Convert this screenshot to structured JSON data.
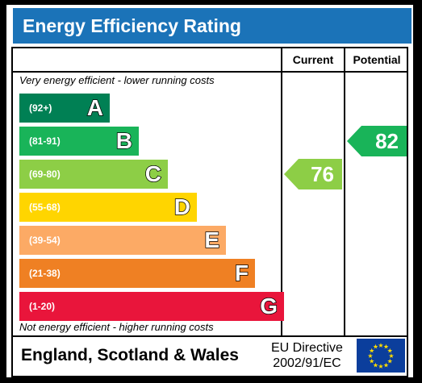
{
  "title": "Energy Efficiency Rating",
  "headers": {
    "current": "Current",
    "potential": "Potential"
  },
  "notes": {
    "top": "Very energy efficient - lower running costs",
    "bottom": "Not energy efficient - higher running costs"
  },
  "bands": [
    {
      "range": "(92+)",
      "letter": "A",
      "color": "#008054"
    },
    {
      "range": "(81-91)",
      "letter": "B",
      "color": "#19b459"
    },
    {
      "range": "(69-80)",
      "letter": "C",
      "color": "#8dce46"
    },
    {
      "range": "(55-68)",
      "letter": "D",
      "color": "#ffd500"
    },
    {
      "range": "(39-54)",
      "letter": "E",
      "color": "#fcaa65"
    },
    {
      "range": "(21-38)",
      "letter": "F",
      "color": "#ef8023"
    },
    {
      "range": "(1-20)",
      "letter": "G",
      "color": "#e9153b"
    }
  ],
  "current": {
    "value": "76",
    "band": "C",
    "color": "#8dce46"
  },
  "potential": {
    "value": "82",
    "band": "B",
    "color": "#19b459"
  },
  "footer": {
    "country": "England, Scotland & Wales",
    "directive_line1": "EU Directive",
    "directive_line2": "2002/91/EC"
  },
  "flag": {
    "name": "eu-flag-icon",
    "star_color": "#ffdd00"
  }
}
